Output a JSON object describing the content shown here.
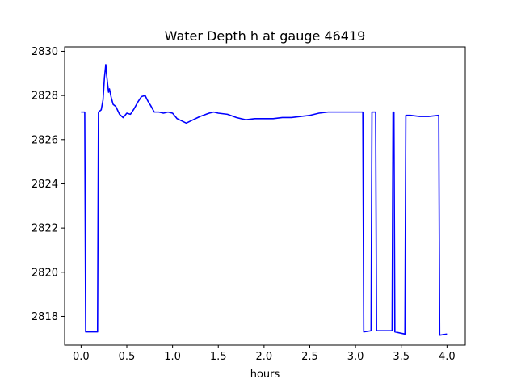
{
  "chart_data": {
    "type": "line",
    "title": "Water Depth h at gauge 46419",
    "xlabel": "hours",
    "ylabel": "",
    "xlim": [
      -0.18,
      4.2
    ],
    "ylim": [
      2816.7,
      2830.2
    ],
    "xticks": [
      0.0,
      0.5,
      1.0,
      1.5,
      2.0,
      2.5,
      3.0,
      3.5,
      4.0
    ],
    "xtick_labels": [
      "0.0",
      "0.5",
      "1.0",
      "1.5",
      "2.0",
      "2.5",
      "3.0",
      "3.5",
      "4.0"
    ],
    "yticks": [
      2818,
      2820,
      2822,
      2824,
      2826,
      2828,
      2830
    ],
    "ytick_labels": [
      "2818",
      "2820",
      "2822",
      "2824",
      "2826",
      "2828",
      "2830"
    ],
    "grid": false,
    "legend": "none",
    "series": [
      {
        "color": "#0000ff",
        "x": [
          0.0,
          0.04,
          0.05,
          0.18,
          0.19,
          0.22,
          0.24,
          0.255,
          0.27,
          0.28,
          0.3,
          0.31,
          0.33,
          0.35,
          0.38,
          0.42,
          0.46,
          0.5,
          0.54,
          0.58,
          0.62,
          0.66,
          0.7,
          0.73,
          0.76,
          0.8,
          0.85,
          0.9,
          0.95,
          1.0,
          1.05,
          1.1,
          1.15,
          1.2,
          1.3,
          1.4,
          1.45,
          1.5,
          1.6,
          1.7,
          1.8,
          1.9,
          2.0,
          2.1,
          2.2,
          2.3,
          2.4,
          2.5,
          2.6,
          2.7,
          2.8,
          2.9,
          3.0,
          3.08,
          3.09,
          3.17,
          3.18,
          3.22,
          3.23,
          3.4,
          3.41,
          3.42,
          3.43,
          3.54,
          3.55,
          3.6,
          3.7,
          3.8,
          3.91,
          3.92,
          4.0
        ],
        "y": [
          2827.25,
          2827.25,
          2817.3,
          2817.3,
          2827.25,
          2827.35,
          2827.8,
          2828.8,
          2829.4,
          2828.9,
          2828.15,
          2828.3,
          2827.9,
          2827.6,
          2827.5,
          2827.15,
          2827.0,
          2827.2,
          2827.15,
          2827.4,
          2827.7,
          2827.95,
          2828.0,
          2827.75,
          2827.55,
          2827.25,
          2827.25,
          2827.2,
          2827.25,
          2827.2,
          2826.95,
          2826.85,
          2826.75,
          2826.85,
          2827.05,
          2827.2,
          2827.25,
          2827.2,
          2827.15,
          2827.0,
          2826.9,
          2826.95,
          2826.95,
          2826.95,
          2827.0,
          2827.0,
          2827.05,
          2827.1,
          2827.2,
          2827.25,
          2827.25,
          2827.25,
          2827.25,
          2827.25,
          2817.3,
          2817.35,
          2827.25,
          2827.25,
          2817.35,
          2817.35,
          2827.25,
          2827.25,
          2817.3,
          2817.2,
          2827.1,
          2827.1,
          2827.05,
          2827.05,
          2827.1,
          2817.15,
          2817.2
        ]
      }
    ]
  }
}
